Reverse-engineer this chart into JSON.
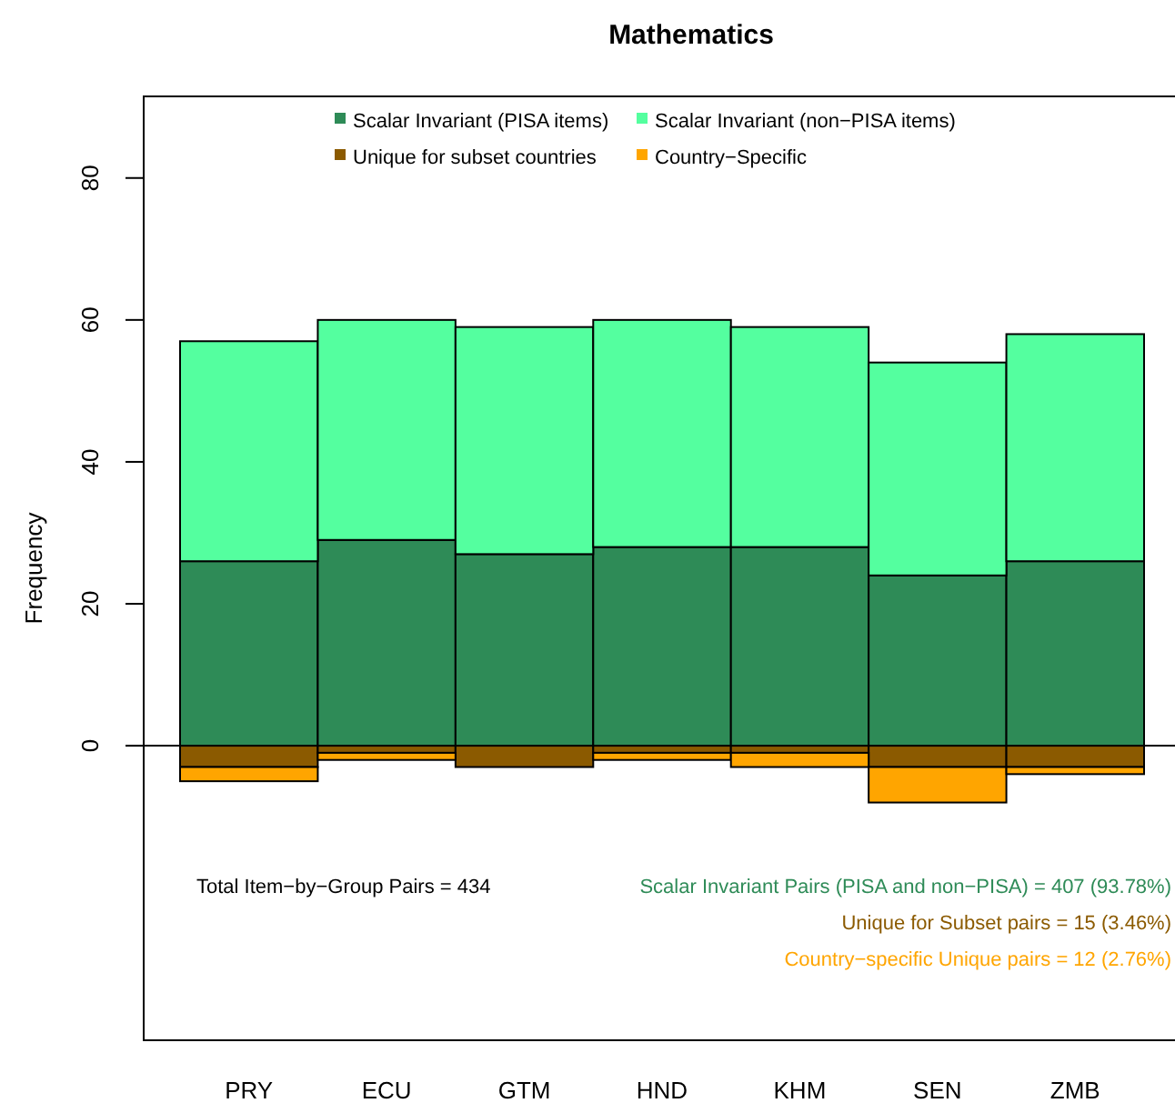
{
  "chart_data": {
    "type": "bar",
    "title": "Mathematics",
    "ylabel": "Frequency",
    "categories": [
      "PRY",
      "ECU",
      "GTM",
      "HND",
      "KHM",
      "SEN",
      "ZMB"
    ],
    "stacked": true,
    "series": [
      {
        "name": "Scalar Invariant (PISA items)",
        "color": "#2e8b57",
        "values": [
          26,
          29,
          27,
          28,
          28,
          24,
          26
        ]
      },
      {
        "name": "Scalar Invariant (non−PISA items)",
        "color": "#54ff9f",
        "values": [
          31,
          31,
          32,
          32,
          31,
          30,
          32
        ]
      },
      {
        "name": "Unique for subset countries",
        "color": "#8b5a00",
        "values": [
          -3,
          -1,
          -3,
          -1,
          -1,
          -3,
          -3
        ]
      },
      {
        "name": "Country−Specific",
        "color": "#ffa500",
        "values": [
          -2,
          -1,
          0,
          -1,
          -2,
          -5,
          -1
        ]
      }
    ],
    "ylim": [
      -41.5,
      91.5
    ],
    "yticks": [
      0,
      20,
      40,
      60,
      80
    ],
    "legend": "top",
    "grid": false,
    "ref_lines": [
      {
        "axis": "y",
        "value": 0,
        "color": "#000000"
      }
    ],
    "annotations": [
      "Total Item−by−Group Pairs = 434",
      "Scalar Invariant Pairs (PISA and non−PISA) = 407 (93.78%)",
      "Unique for Subset pairs = 15 (3.46%)",
      "Country−specific Unique pairs = 12 (2.76%)"
    ]
  }
}
